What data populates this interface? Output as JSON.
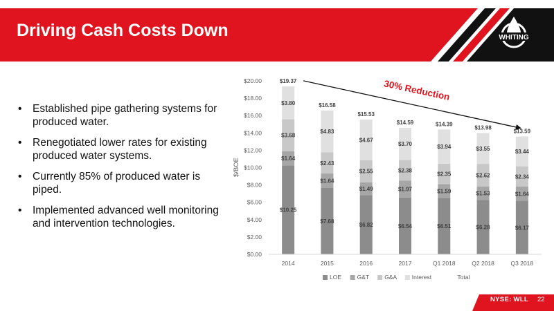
{
  "slide": {
    "title": "Driving Cash Costs Down",
    "logo_text": "WHITING",
    "ticker_prefix": "NYSE: ",
    "ticker_symbol": "WLL",
    "page_number": "22",
    "brand_red": "#e0141e"
  },
  "bullets": [
    "Established pipe gathering systems for produced water.",
    "Renegotiated lower rates for existing produced water systems.",
    "Currently  85% of produced water is piped.",
    "Implemented advanced well monitoring and intervention technologies."
  ],
  "chart_data": {
    "type": "bar",
    "stacked": true,
    "categories": [
      "2014",
      "2015",
      "2016",
      "2017",
      "Q1 2018",
      "Q2 2018",
      "Q3 2018"
    ],
    "series": [
      {
        "name": "LOE",
        "values": [
          10.25,
          7.68,
          6.82,
          6.54,
          6.51,
          6.28,
          6.17
        ],
        "color": "#8c8c8c"
      },
      {
        "name": "G&T",
        "values": [
          1.64,
          1.64,
          1.49,
          1.97,
          1.59,
          1.53,
          1.64
        ],
        "color": "#a6a6a6"
      },
      {
        "name": "G&A",
        "values": [
          3.68,
          2.43,
          2.55,
          2.38,
          2.35,
          2.62,
          2.34
        ],
        "color": "#c8c8c8"
      },
      {
        "name": "Interest",
        "values": [
          3.8,
          4.83,
          4.67,
          3.7,
          3.94,
          3.55,
          3.44
        ],
        "color": "#e0e0e0"
      },
      {
        "name": "Total",
        "values": [
          19.37,
          16.58,
          15.53,
          14.59,
          14.39,
          13.98,
          13.59
        ],
        "color": "#ffffff"
      }
    ],
    "labels": {
      "LOE": [
        "$10.25",
        "$7.68",
        "$6.82",
        "$6.54",
        "$6.51",
        "$6.28",
        "$6.17"
      ],
      "G&T": [
        "$1.64",
        "$1.64",
        "$1.49",
        "$1.97",
        "$1.59",
        "$1.53",
        "$1.64"
      ],
      "G&A": [
        "$3.68",
        "$2.43",
        "$2.55",
        "$2.38",
        "$2.35",
        "$2.62",
        "$2.34"
      ],
      "Interest": [
        "$3.80",
        "$4.83",
        "$4.67",
        "$3.70",
        "$3.94",
        "$3.55",
        "$3.44"
      ],
      "Total": [
        "$19.37",
        "$16.58",
        "$15.53",
        "$14.59",
        "$14.39",
        "$13.98",
        "$13.59"
      ]
    },
    "ylabel": "$/BOE",
    "ylim": [
      0,
      20
    ],
    "yticks": [
      "$0.00",
      "$2.00",
      "$4.00",
      "$6.00",
      "$8.00",
      "$10.00",
      "$12.00",
      "$14.00",
      "$16.00",
      "$18.00",
      "$20.00"
    ],
    "annotation": "30% Reduction",
    "annotation_color": "#e0141e",
    "legend_position": "bottom",
    "grid": false
  }
}
